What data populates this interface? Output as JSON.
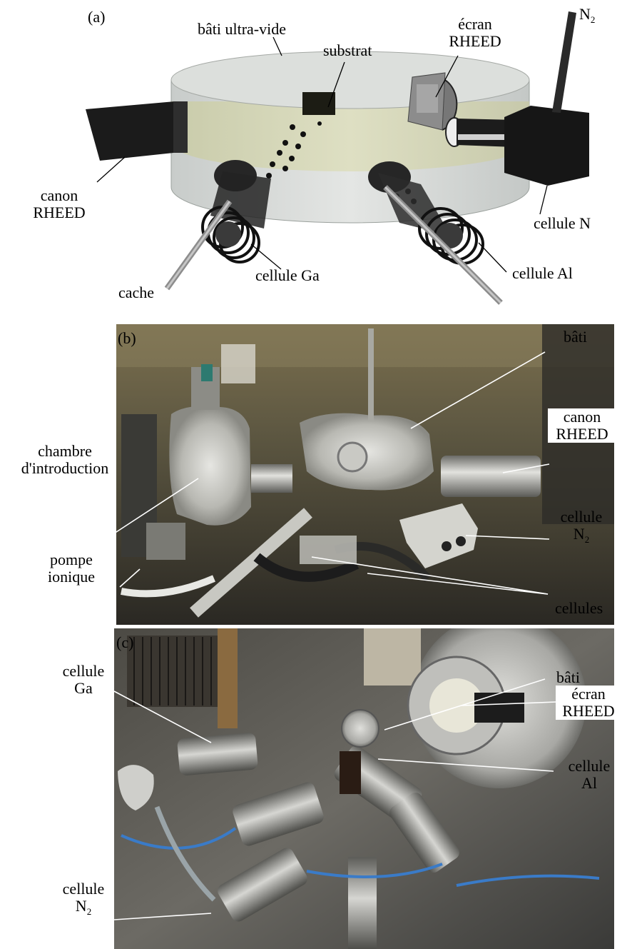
{
  "panel_a": {
    "tag": "(a)",
    "labels": {
      "bati": "bâti ultra-vide",
      "substrat": "substrat",
      "ecran_1": "écran",
      "ecran_2": "RHEED",
      "n2_main": "N",
      "n2_sub": "2",
      "canon_1": "canon",
      "canon_2": "RHEED",
      "cellule_n": "cellule N",
      "cellule_ga": "cellule Ga",
      "cellule_al": "cellule Al",
      "cache": "cache"
    }
  },
  "panel_b": {
    "tag": "(b)",
    "labels": {
      "bati": "bâti",
      "canon_1": "canon",
      "canon_2": "RHEED",
      "chambre_1": "chambre",
      "chambre_2": "d'introduction",
      "cellule_n2_1": "cellule",
      "cellule_n2_main": "N",
      "cellule_n2_sub": "2",
      "pompe_1": "pompe",
      "pompe_2": "ionique",
      "cellules": "cellules"
    }
  },
  "panel_c": {
    "tag": "(c)",
    "labels": {
      "bati": "bâti",
      "ecran_1": "écran",
      "ecran_2": "RHEED",
      "cellule_ga_1": "cellule",
      "cellule_ga_2": "Ga",
      "cellule_al_1": "cellule",
      "cellule_al_2": "Al",
      "cellule_n2_1": "cellule",
      "cellule_n2_main": "N",
      "cellule_n2_sub": "2"
    }
  },
  "colors": {
    "chamber_fill": "#d8dcd8",
    "chamber_band": "#cfd2a8",
    "cell_dark": "#1e1e1e",
    "photo_b_base": "#4a4638",
    "photo_c_base": "#5a5a56"
  }
}
